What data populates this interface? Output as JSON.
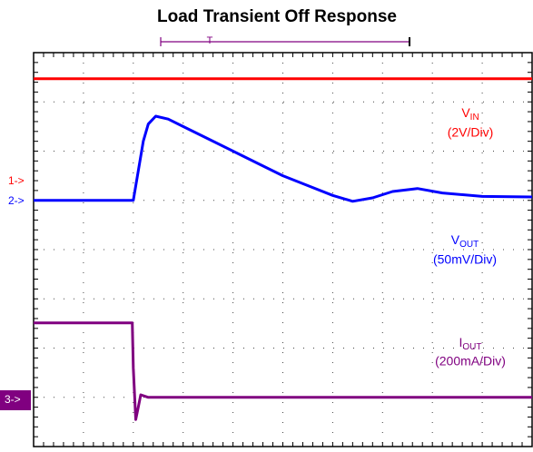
{
  "chart_data": {
    "type": "line",
    "title": "Load Transient Off Response",
    "trigger_label": "T",
    "xlim": [
      0,
      10
    ],
    "ylim": [
      0,
      8
    ],
    "xticks": [
      0,
      1,
      2,
      3,
      4,
      5,
      6,
      7,
      8,
      9,
      10
    ],
    "yticks": [
      0,
      1,
      2,
      3,
      4,
      5,
      6,
      7,
      8
    ],
    "grid": true,
    "series": [
      {
        "name": "V",
        "sub": "IN",
        "scale": "(2V/Div)",
        "marker": "1->",
        "color": "#ff0000",
        "x": [
          0,
          10
        ],
        "values": [
          7.47,
          7.47
        ]
      },
      {
        "name": "V",
        "sub": "OUT",
        "scale": "(50mV/Div)",
        "marker": "2->",
        "color": "#0000ff",
        "x": [
          0,
          2.0,
          2.1,
          2.2,
          2.3,
          2.45,
          2.7,
          3,
          3.5,
          4,
          4.5,
          5,
          5.5,
          6,
          6.4,
          6.8,
          7.2,
          7.7,
          8.2,
          9,
          10
        ],
        "values": [
          5.0,
          5.0,
          5.6,
          6.2,
          6.55,
          6.71,
          6.65,
          6.5,
          6.25,
          6.0,
          5.75,
          5.5,
          5.3,
          5.1,
          4.98,
          5.05,
          5.18,
          5.24,
          5.15,
          5.08,
          5.07
        ]
      },
      {
        "name": "I",
        "sub": "OUT",
        "scale": "(200mA/Div)",
        "marker": "3->",
        "color": "#800080",
        "x": [
          0,
          1.98,
          2.0,
          2.05,
          2.1,
          2.15,
          2.3,
          10
        ],
        "values": [
          2.51,
          2.51,
          1.6,
          0.55,
          0.8,
          1.05,
          1.0,
          1.0
        ]
      }
    ]
  }
}
